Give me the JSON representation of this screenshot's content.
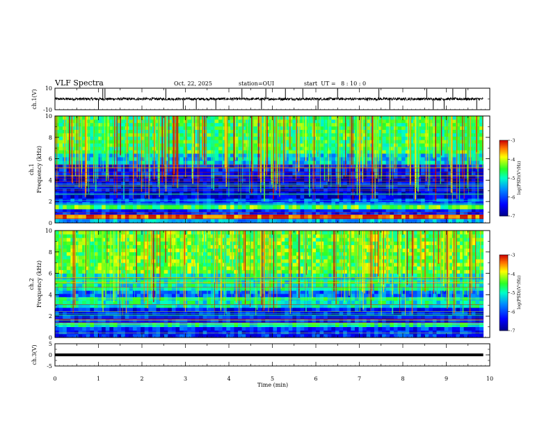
{
  "header": {
    "title": "VLF Spectra",
    "date": "Oct. 22, 2025",
    "station": "station=OUI",
    "start": "start  UT =   8 : 10 : 0"
  },
  "chart_data": [
    {
      "type": "line",
      "panel": "ch1_waveform",
      "ylabel": "ch.1(V)",
      "yticks": [
        "10",
        "-10"
      ],
      "ylim": [
        -10,
        10
      ],
      "x_extent_min": 9.85,
      "baseline": 0,
      "noise_amplitude": 1.2,
      "spikes": [
        1.0,
        1.1,
        1.15,
        2.55,
        2.95,
        3.25,
        3.7,
        4.3,
        4.75,
        4.85,
        5.3,
        5.7,
        6.05,
        6.5,
        7.45,
        7.7,
        8.55,
        8.7,
        8.95,
        9.15,
        9.45,
        9.7
      ]
    },
    {
      "type": "heatmap",
      "panel": "ch1_spectrogram",
      "ylabel": "ch.1 Frequency (kHz)",
      "ylabel_line1": "ch.1",
      "ylabel_line2": "Frequency (kHz)",
      "ylim": [
        0,
        10
      ],
      "yticks": [
        "0",
        "2",
        "4",
        "6",
        "8",
        "10"
      ],
      "x_extent_min": 9.85,
      "colorbar": {
        "label": "log(PSD)(V²/Hz)",
        "range": [
          -7,
          -3
        ],
        "ticks": [
          "-3",
          "-4",
          "-5",
          "-6",
          "-7"
        ]
      },
      "bands": [
        {
          "from": 0,
          "to": 0.4,
          "level": -5.5
        },
        {
          "from": 0.4,
          "to": 0.8,
          "level": -3.2
        },
        {
          "from": 0.8,
          "to": 1.3,
          "level": -6.2
        },
        {
          "from": 1.3,
          "to": 1.7,
          "level": -4.5
        },
        {
          "from": 1.7,
          "to": 2.3,
          "level": -6.0
        },
        {
          "from": 2.3,
          "to": 4.5,
          "level": -6.6
        },
        {
          "from": 4.5,
          "to": 5.5,
          "level": -6.3
        },
        {
          "from": 5.5,
          "to": 6.5,
          "level": -5.3
        },
        {
          "from": 6.5,
          "to": 10,
          "level": -4.6
        }
      ]
    },
    {
      "type": "heatmap",
      "panel": "ch2_spectrogram",
      "ylabel": "ch.2 Frequency (kHz)",
      "ylabel_line1": "ch.2",
      "ylabel_line2": "Frequency (kHz)",
      "ylim": [
        0,
        10
      ],
      "yticks": [
        "0",
        "2",
        "4",
        "6",
        "8",
        "10"
      ],
      "x_extent_min": 9.85,
      "colorbar": {
        "label": "log(PSD)(V²/Hz)",
        "range": [
          -7,
          -3
        ],
        "ticks": [
          "-3",
          "-4",
          "-5",
          "-6",
          "-7"
        ]
      },
      "bands": [
        {
          "from": 0,
          "to": 1.0,
          "level": -6.2
        },
        {
          "from": 1.0,
          "to": 1.4,
          "level": -5.0
        },
        {
          "from": 1.4,
          "to": 2.8,
          "level": -6.3
        },
        {
          "from": 2.8,
          "to": 3.8,
          "level": -5.0
        },
        {
          "from": 3.8,
          "to": 4.4,
          "level": -5.8
        },
        {
          "from": 4.4,
          "to": 6.0,
          "level": -5.0
        },
        {
          "from": 6.0,
          "to": 10,
          "level": -4.4
        }
      ]
    },
    {
      "type": "line",
      "panel": "ch3_waveform",
      "ylabel": "ch.3(V)",
      "yticks": [
        "5",
        "0",
        "-5"
      ],
      "ylim": [
        -5,
        5
      ],
      "x_extent_min": 9.85,
      "baseline": 0
    }
  ],
  "x_axis": {
    "label": "Time (min)",
    "ticks": [
      "0",
      "1",
      "2",
      "3",
      "4",
      "5",
      "6",
      "7",
      "8",
      "9",
      "10"
    ],
    "xlim": [
      0,
      10
    ]
  }
}
